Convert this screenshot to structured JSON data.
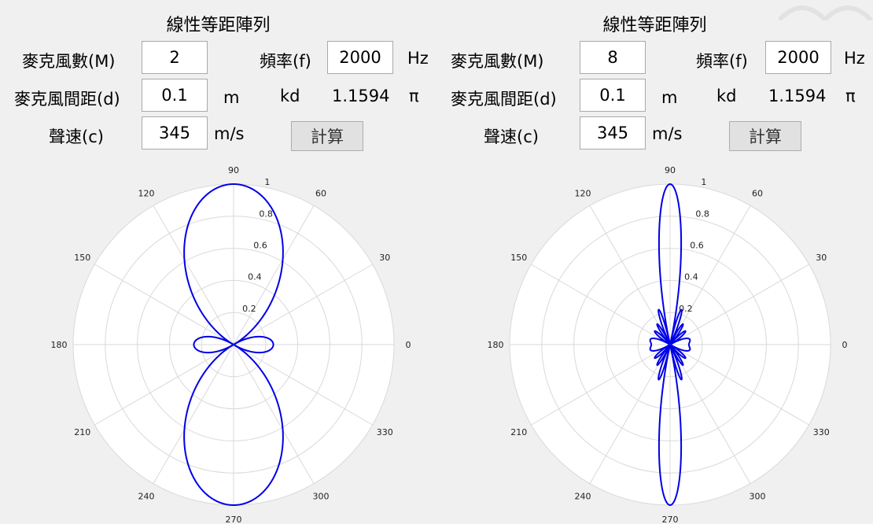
{
  "panels": [
    {
      "title": "線性等距陣列",
      "mic_count_label": "麥克風數(M)",
      "mic_count_value": "2",
      "freq_label": "頻率(f)",
      "freq_value": "2000",
      "freq_unit": "Hz",
      "spacing_label": "麥克風間距(d)",
      "spacing_value": "0.1",
      "spacing_unit": "m",
      "kd_label": "kd",
      "kd_value": "1.1594",
      "kd_unit": "π",
      "speed_label": "聲速(c)",
      "speed_value": "345",
      "speed_unit": "m/s",
      "calc_label": "計算",
      "plot": {
        "M": 2,
        "kd_over_pi": 1.1594
      }
    },
    {
      "title": "線性等距陣列",
      "mic_count_label": "麥克風數(M)",
      "mic_count_value": "8",
      "freq_label": "頻率(f)",
      "freq_value": "2000",
      "freq_unit": "Hz",
      "spacing_label": "麥克風間距(d)",
      "spacing_value": "0.1",
      "spacing_unit": "m",
      "kd_label": "kd",
      "kd_value": "1.1594",
      "kd_unit": "π",
      "speed_label": "聲速(c)",
      "speed_value": "345",
      "speed_unit": "m/s",
      "calc_label": "計算",
      "plot": {
        "M": 8,
        "kd_over_pi": 1.1594
      }
    }
  ],
  "polar_axes": {
    "angle_ticks": [
      "0",
      "30",
      "60",
      "90",
      "120",
      "150",
      "180",
      "210",
      "240",
      "270",
      "300",
      "330"
    ],
    "radius_ticks": [
      "0.2",
      "0.4",
      "0.6",
      "0.8",
      "1"
    ],
    "rmax": 1,
    "grid_color": "#d9d9d9",
    "curve_color": "#0000e6"
  }
}
